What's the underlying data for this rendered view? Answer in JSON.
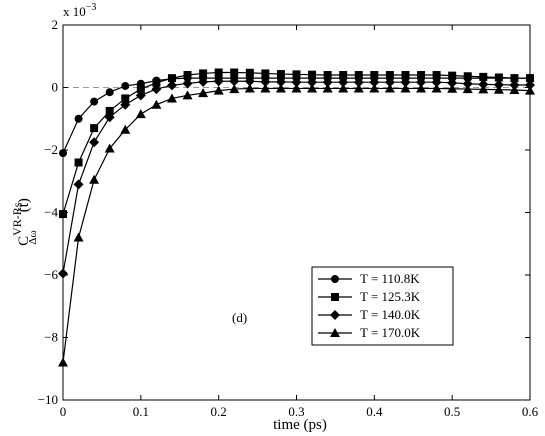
{
  "chart_data": {
    "type": "line",
    "xlabel": "time (ps)",
    "ylabel_main": "C",
    "ylabel_sup": "VR-Rs",
    "ylabel_sub": "Δω",
    "ylabel_arg": "(t)",
    "multiplier_base": "x 10",
    "multiplier_exp": "−3",
    "annotation": "(d)",
    "xlim": [
      0,
      0.6
    ],
    "ylim": [
      -10,
      2
    ],
    "xticks": [
      0,
      0.1,
      0.2,
      0.3,
      0.4,
      0.5,
      0.6
    ],
    "xtick_labels": [
      "0",
      "0.1",
      "0.2",
      "0.3",
      "0.4",
      "0.5",
      "0.6"
    ],
    "yticks": [
      -10,
      -8,
      -6,
      -4,
      -2,
      0,
      2
    ],
    "ytick_labels": [
      "−10",
      "−8",
      "−6",
      "−4",
      "−2",
      "0",
      "2"
    ],
    "reference_line_y": 0,
    "x": [
      0,
      0.02,
      0.04,
      0.06,
      0.08,
      0.1,
      0.12,
      0.14,
      0.16,
      0.18,
      0.2,
      0.22,
      0.24,
      0.26,
      0.28,
      0.3,
      0.32,
      0.34,
      0.36,
      0.38,
      0.4,
      0.42,
      0.44,
      0.46,
      0.48,
      0.5,
      0.52,
      0.54,
      0.56,
      0.58,
      0.6
    ],
    "legend_position": "center-right",
    "series": [
      {
        "name": "T = 110.8K",
        "marker": "circle",
        "values": [
          -2.1,
          -1.0,
          -0.45,
          -0.15,
          0.05,
          0.12,
          0.22,
          0.28,
          0.3,
          0.3,
          0.3,
          0.3,
          0.3,
          0.3,
          0.3,
          0.3,
          0.3,
          0.3,
          0.3,
          0.3,
          0.3,
          0.3,
          0.3,
          0.3,
          0.3,
          0.3,
          0.3,
          0.3,
          0.3,
          0.3,
          0.3
        ]
      },
      {
        "name": "T = 125.3K",
        "marker": "square",
        "values": [
          -4.05,
          -2.4,
          -1.3,
          -0.75,
          -0.35,
          -0.05,
          0.15,
          0.3,
          0.4,
          0.45,
          0.48,
          0.48,
          0.47,
          0.45,
          0.43,
          0.42,
          0.41,
          0.4,
          0.4,
          0.4,
          0.4,
          0.4,
          0.4,
          0.4,
          0.4,
          0.38,
          0.36,
          0.34,
          0.32,
          0.3,
          0.3
        ]
      },
      {
        "name": "T = 140.0K",
        "marker": "diamond",
        "values": [
          -5.95,
          -3.1,
          -1.75,
          -0.95,
          -0.55,
          -0.25,
          -0.05,
          0.07,
          0.13,
          0.18,
          0.2,
          0.2,
          0.2,
          0.18,
          0.18,
          0.17,
          0.17,
          0.17,
          0.17,
          0.17,
          0.17,
          0.17,
          0.17,
          0.17,
          0.17,
          0.15,
          0.12,
          0.1,
          0.09,
          0.08,
          0.08
        ]
      },
      {
        "name": "T = 170.0K",
        "marker": "triangle",
        "values": [
          -8.8,
          -4.8,
          -2.95,
          -1.95,
          -1.35,
          -0.85,
          -0.55,
          -0.35,
          -0.25,
          -0.18,
          -0.1,
          -0.05,
          -0.03,
          -0.03,
          -0.03,
          -0.03,
          -0.03,
          -0.03,
          -0.03,
          -0.03,
          -0.03,
          -0.03,
          -0.03,
          -0.03,
          -0.03,
          -0.04,
          -0.05,
          -0.06,
          -0.07,
          -0.08,
          -0.1
        ]
      }
    ]
  }
}
